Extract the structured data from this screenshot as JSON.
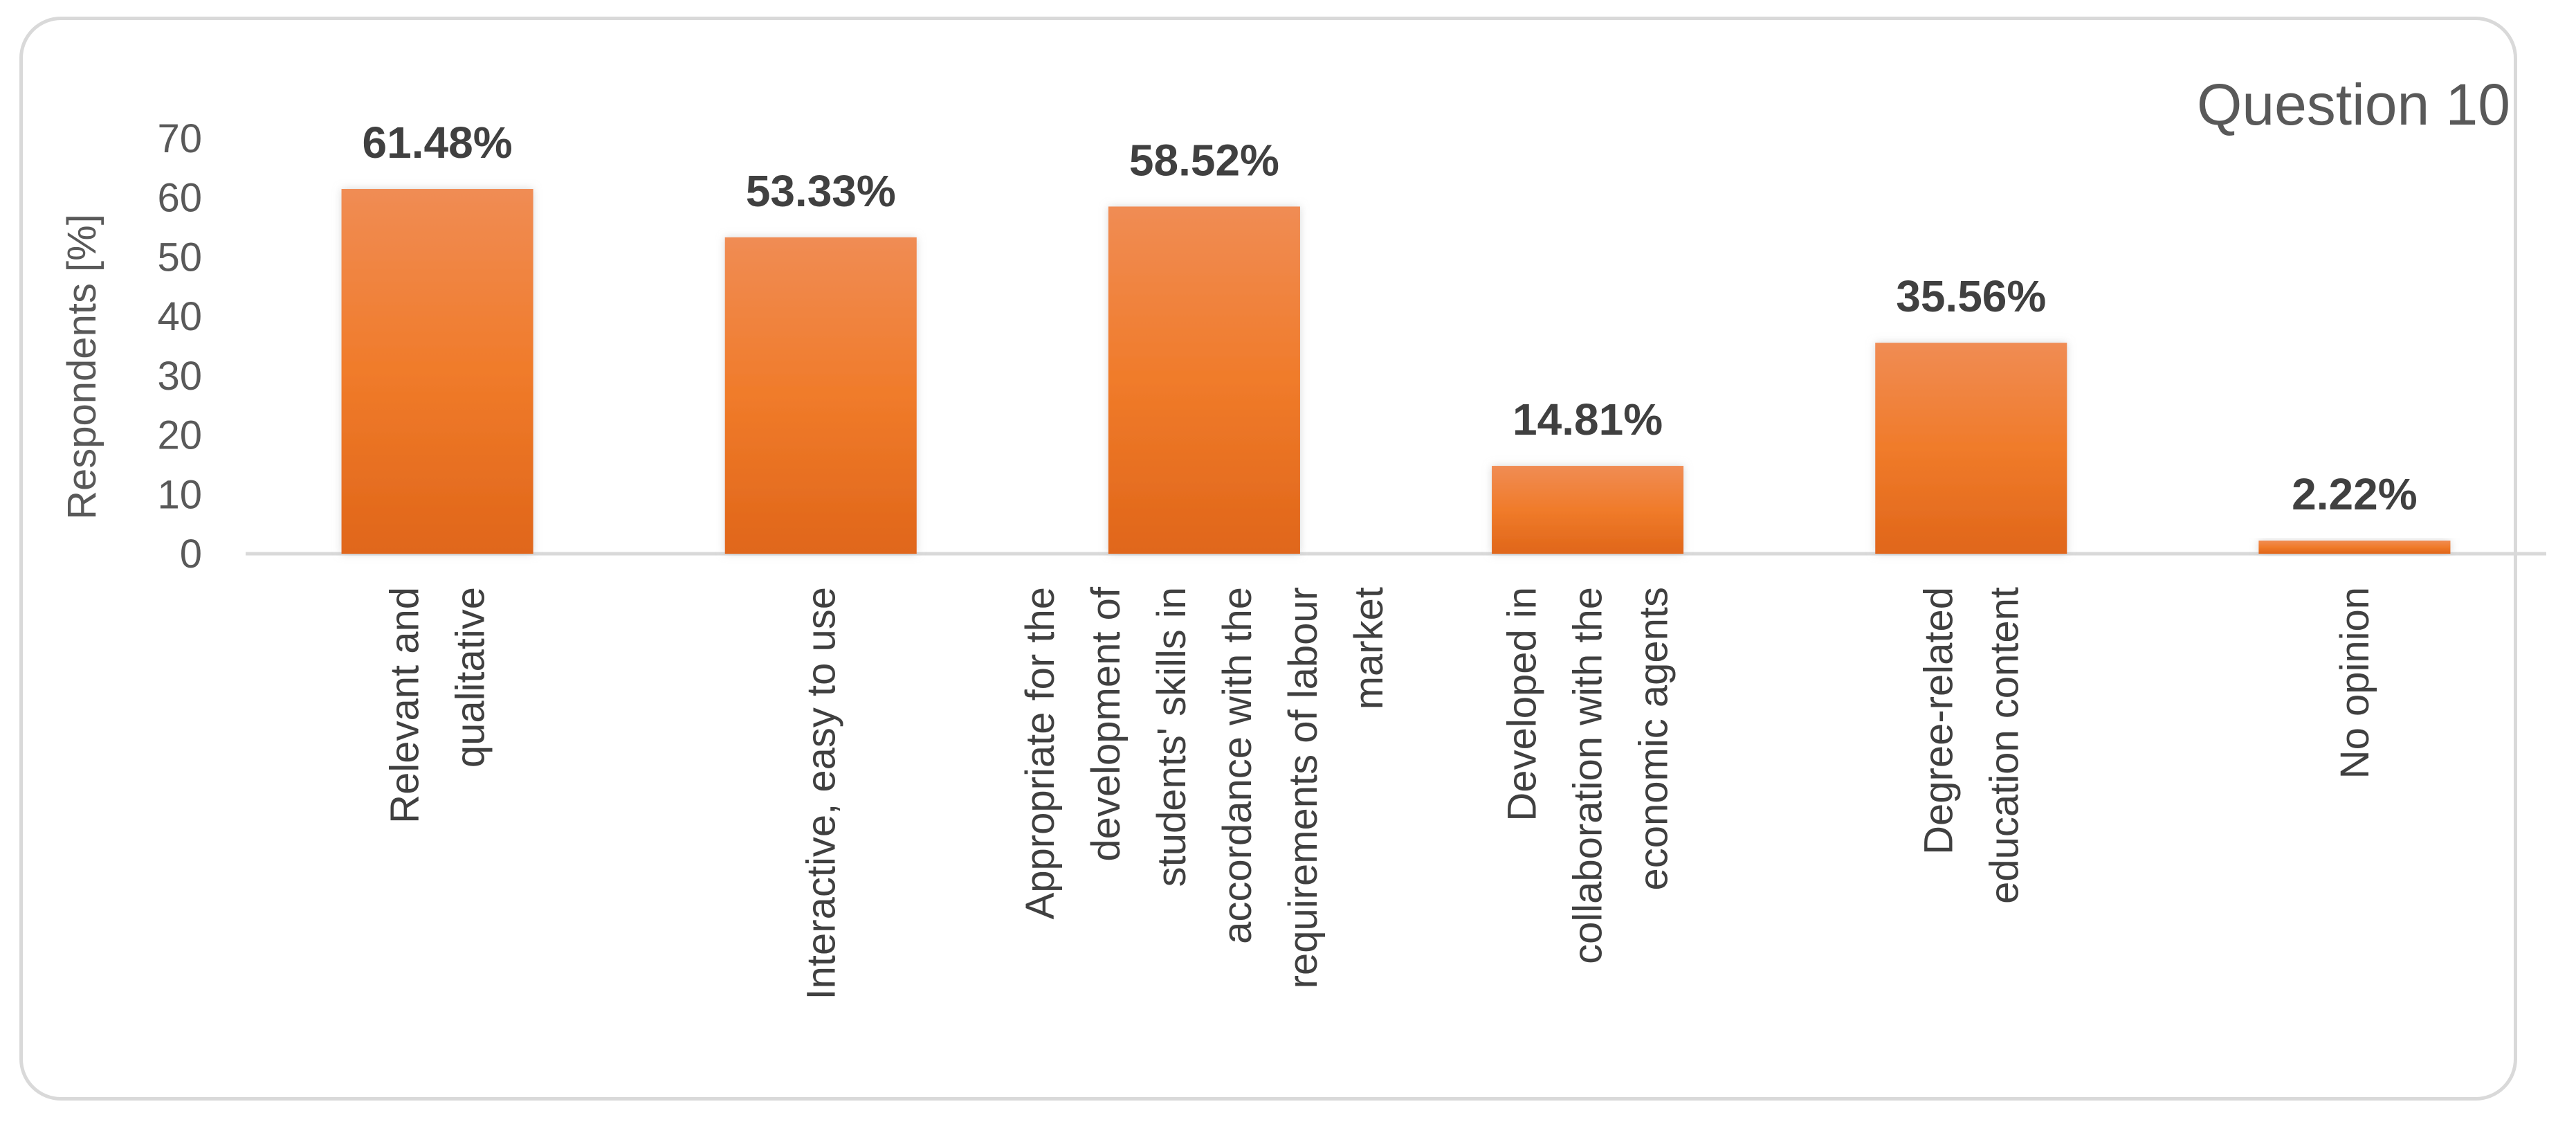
{
  "chart_data": {
    "type": "bar",
    "title": "Question 10",
    "ylabel": "Respondents [%]",
    "xlabel": "",
    "ylim": [
      0,
      70
    ],
    "yticks": [
      0,
      10,
      20,
      30,
      40,
      50,
      60,
      70
    ],
    "grid": false,
    "bar_color": "#F07B2A",
    "categories": [
      [
        "Relevant and",
        "qualitative"
      ],
      [
        "Interactive, easy to use"
      ],
      [
        "Appropriate for the",
        "development of",
        "students' skills in",
        "accordance with the",
        "requirements of labour",
        "market"
      ],
      [
        "Developed in",
        "collaboration with the",
        "economic agents"
      ],
      [
        "Degree-related",
        "education content"
      ],
      [
        "No opinion"
      ]
    ],
    "values": [
      61.48,
      53.33,
      58.52,
      14.81,
      35.56,
      2.22
    ],
    "data_labels": [
      "61.48%",
      "53.33%",
      "58.52%",
      "14.81%",
      "35.56%",
      "2.22%"
    ]
  }
}
